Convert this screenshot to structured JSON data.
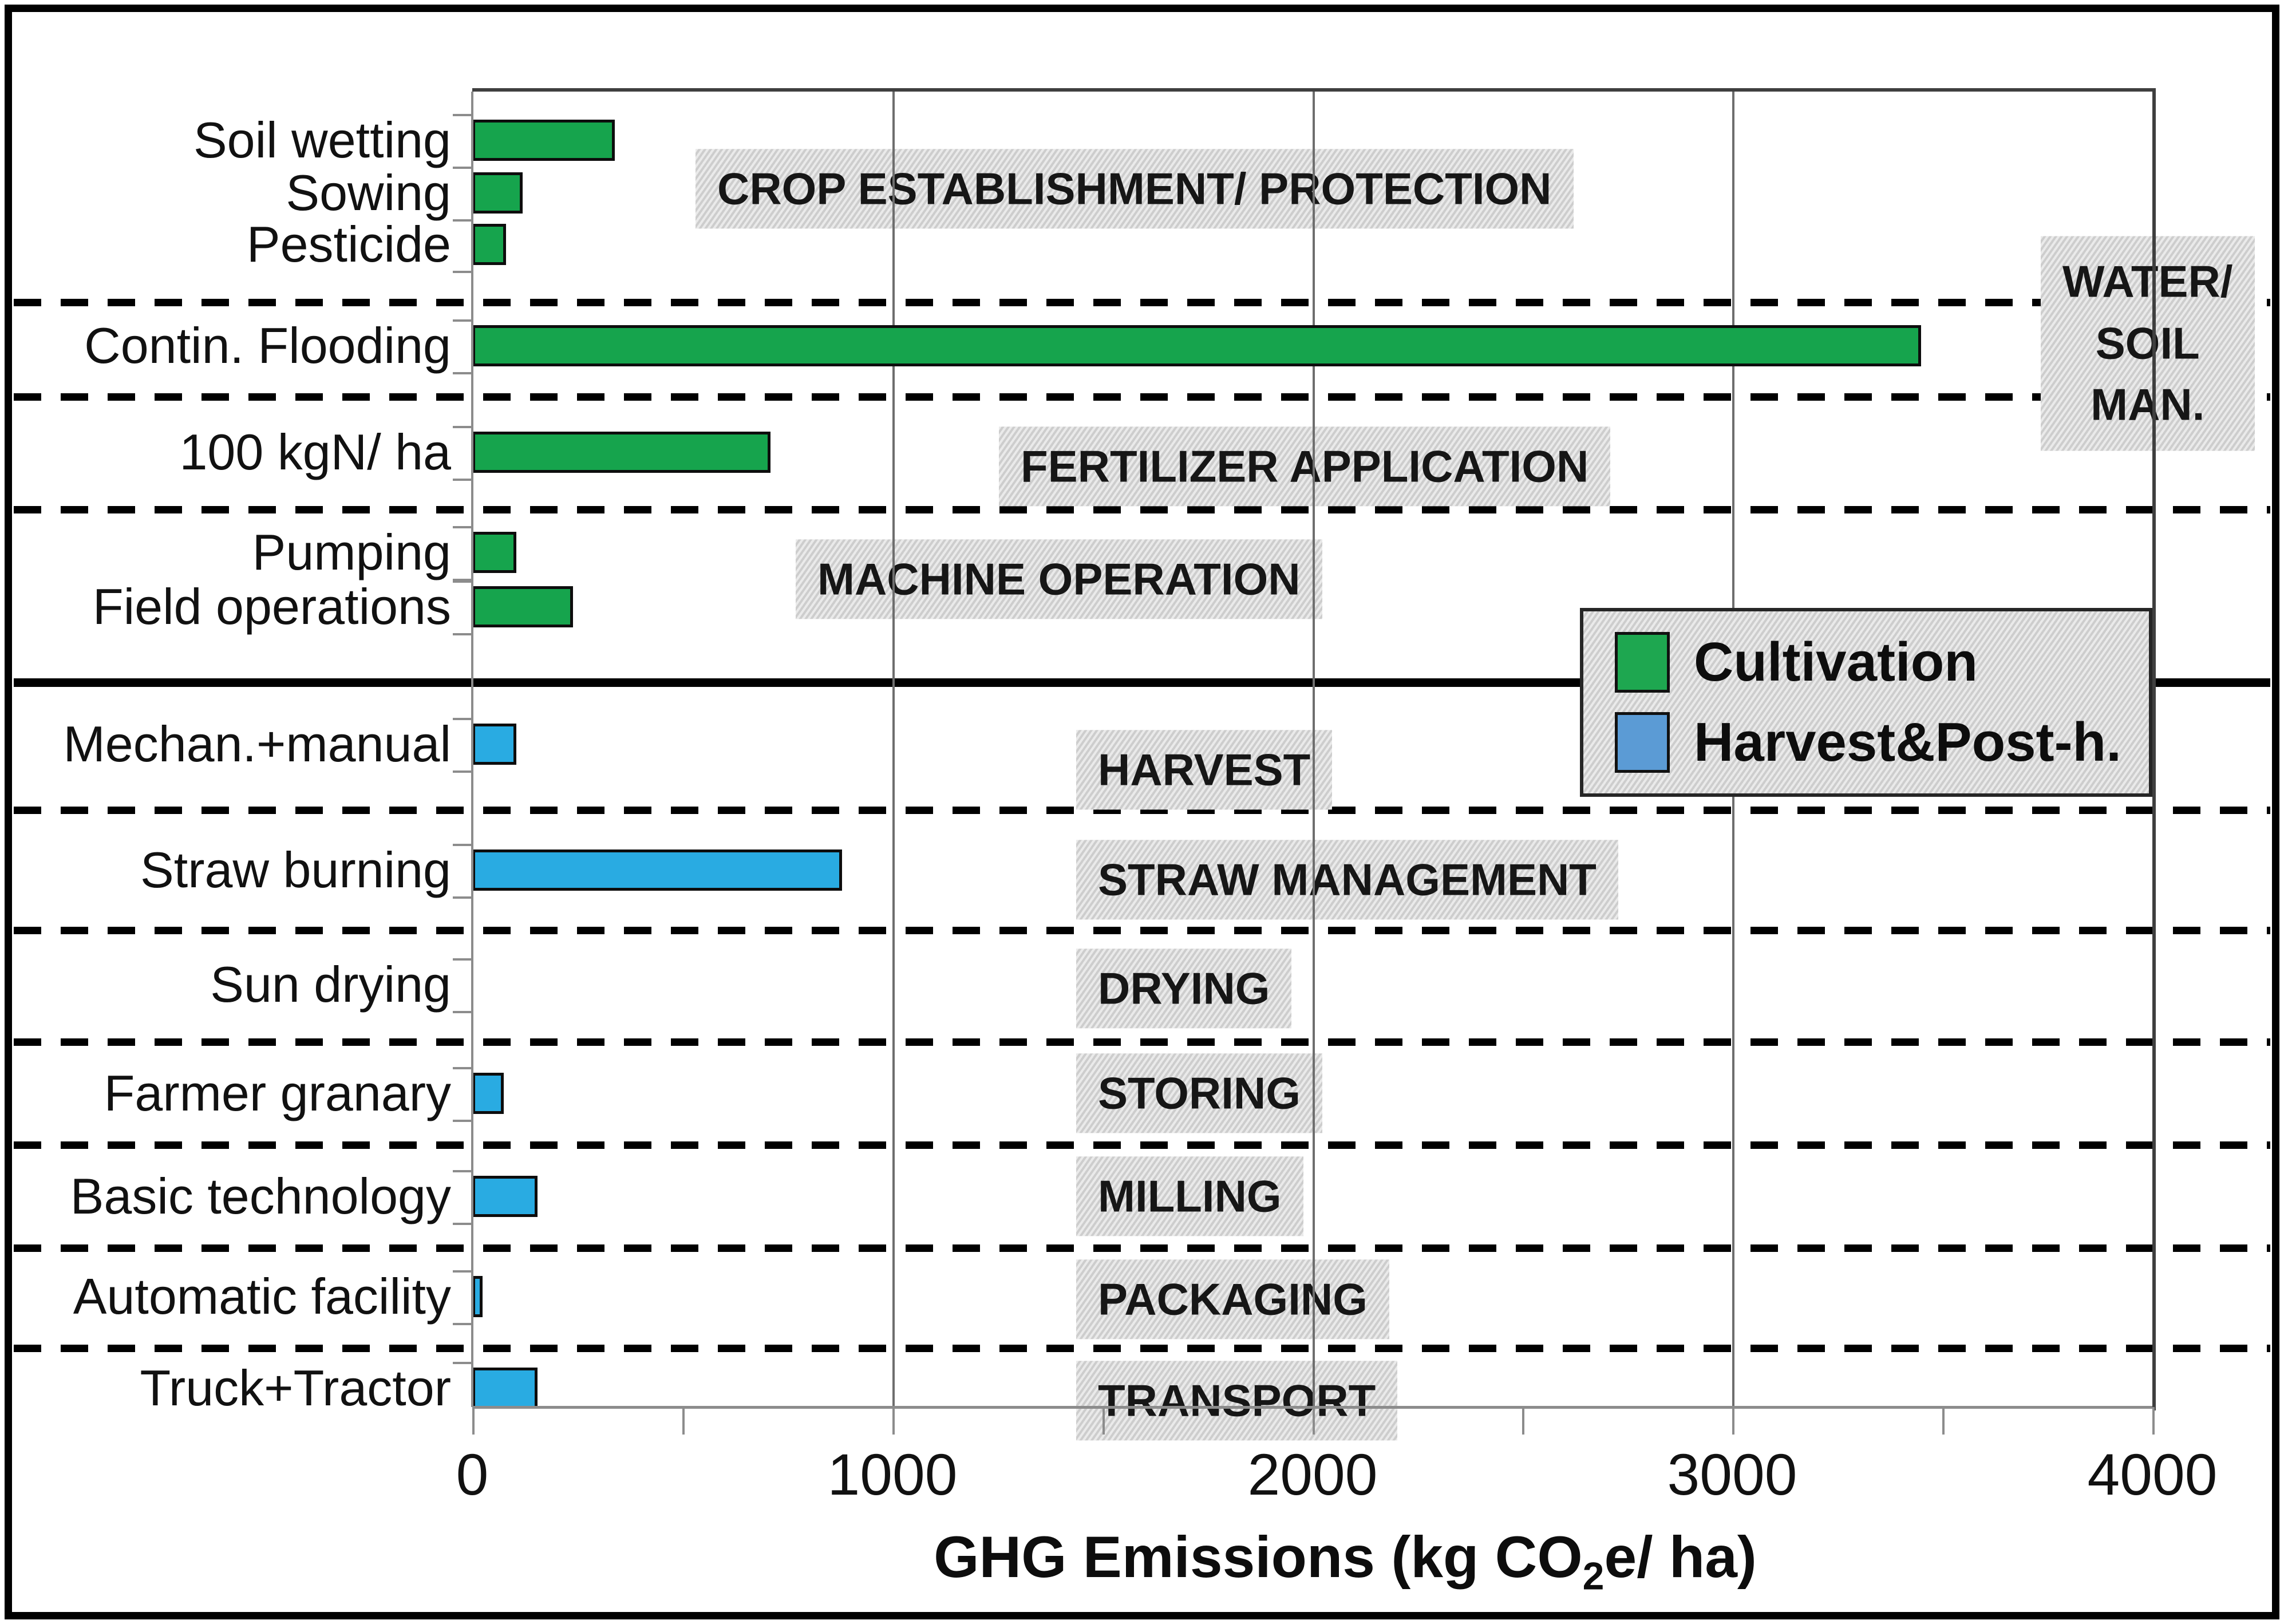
{
  "chart_data": {
    "type": "bar",
    "orientation": "horizontal",
    "title": "",
    "xlabel": "GHG Emissions (kg CO2e/ ha)",
    "xlabel_parts": {
      "prefix": "GHG Emissions (kg CO",
      "sub": "2",
      "suffix": "e/ ha)"
    },
    "ylabel": "",
    "xlim": [
      0,
      4000
    ],
    "xticks": [
      "0",
      "1000",
      "2000",
      "3000",
      "4000"
    ],
    "x_minor_step": 500,
    "grid": "vertical major gridlines on",
    "legend_position": "middle-right",
    "legend": [
      {
        "label": "Cultivation",
        "series": "cultivation"
      },
      {
        "label": "Harvest&Post-h.",
        "series": "harvest"
      }
    ],
    "colors": {
      "cultivation_bar": "#16A44D",
      "harvest_bar": "#29ABE2",
      "cultivation_swatch": "#1EA750",
      "harvest_swatch": "#5B9BD5",
      "label_box_bg": "#D9D9D9",
      "gridline": "#6E6E6E",
      "axis": "#8C8C8C",
      "divider": "#000000"
    },
    "categories": [
      "Soil wetting",
      "Sowing",
      "Pesticide",
      "Contin. Flooding",
      "100 kgN/ ha",
      "Pumping",
      "Field operations",
      "Mechan.+manual",
      "Straw burning",
      "Sun drying",
      "Farmer granary",
      "Basic technology",
      "Automatic facility",
      "Truck+Tractor"
    ],
    "values": [
      340,
      120,
      80,
      3450,
      710,
      105,
      240,
      105,
      880,
      0,
      75,
      155,
      25,
      155
    ],
    "series_of": [
      "cultivation",
      "cultivation",
      "cultivation",
      "cultivation",
      "cultivation",
      "cultivation",
      "cultivation",
      "harvest",
      "harvest",
      "harvest",
      "harvest",
      "harvest",
      "harvest",
      "harvest"
    ],
    "sections": [
      {
        "label": "CROP ESTABLISHMENT/ PROTECTION",
        "items": [
          {
            "category": "Soil wetting",
            "value": 340,
            "series": "cultivation"
          },
          {
            "category": "Sowing",
            "value": 120,
            "series": "cultivation"
          },
          {
            "category": "Pesticide",
            "value": 80,
            "series": "cultivation"
          }
        ]
      },
      {
        "label": "WATER/ SOIL MAN.",
        "label_lines": [
          "WATER/",
          "SOIL",
          "MAN."
        ],
        "items": [
          {
            "category": "Contin. Flooding",
            "value": 3450,
            "series": "cultivation"
          }
        ]
      },
      {
        "label": "FERTILIZER APPLICATION",
        "items": [
          {
            "category": "100 kgN/ ha",
            "value": 710,
            "series": "cultivation"
          }
        ]
      },
      {
        "label": "MACHINE OPERATION",
        "items": [
          {
            "category": "Pumping",
            "value": 105,
            "series": "cultivation"
          },
          {
            "category": "Field operations",
            "value": 240,
            "series": "cultivation"
          }
        ]
      },
      {
        "label": "HARVEST",
        "items": [
          {
            "category": "Mechan.+manual",
            "value": 105,
            "series": "harvest"
          }
        ]
      },
      {
        "label": "STRAW MANAGEMENT",
        "items": [
          {
            "category": "Straw burning",
            "value": 880,
            "series": "harvest"
          }
        ]
      },
      {
        "label": "DRYING",
        "items": [
          {
            "category": "Sun drying",
            "value": 0,
            "series": "harvest"
          }
        ]
      },
      {
        "label": "STORING",
        "items": [
          {
            "category": "Farmer granary",
            "value": 75,
            "series": "harvest"
          }
        ]
      },
      {
        "label": "MILLING",
        "items": [
          {
            "category": "Basic technology",
            "value": 155,
            "series": "harvest"
          }
        ]
      },
      {
        "label": "PACKAGING",
        "items": [
          {
            "category": "Automatic facility",
            "value": 25,
            "series": "harvest"
          }
        ]
      },
      {
        "label": "TRANSPORT",
        "items": [
          {
            "category": "Truck+Tractor",
            "value": 155,
            "series": "harvest"
          }
        ]
      }
    ],
    "divider_solid_after_section_index": 3,
    "annotations": "dashed horizontal lines separate process stages; solid black line separates Cultivation from Harvest&Post-harvest stages"
  }
}
